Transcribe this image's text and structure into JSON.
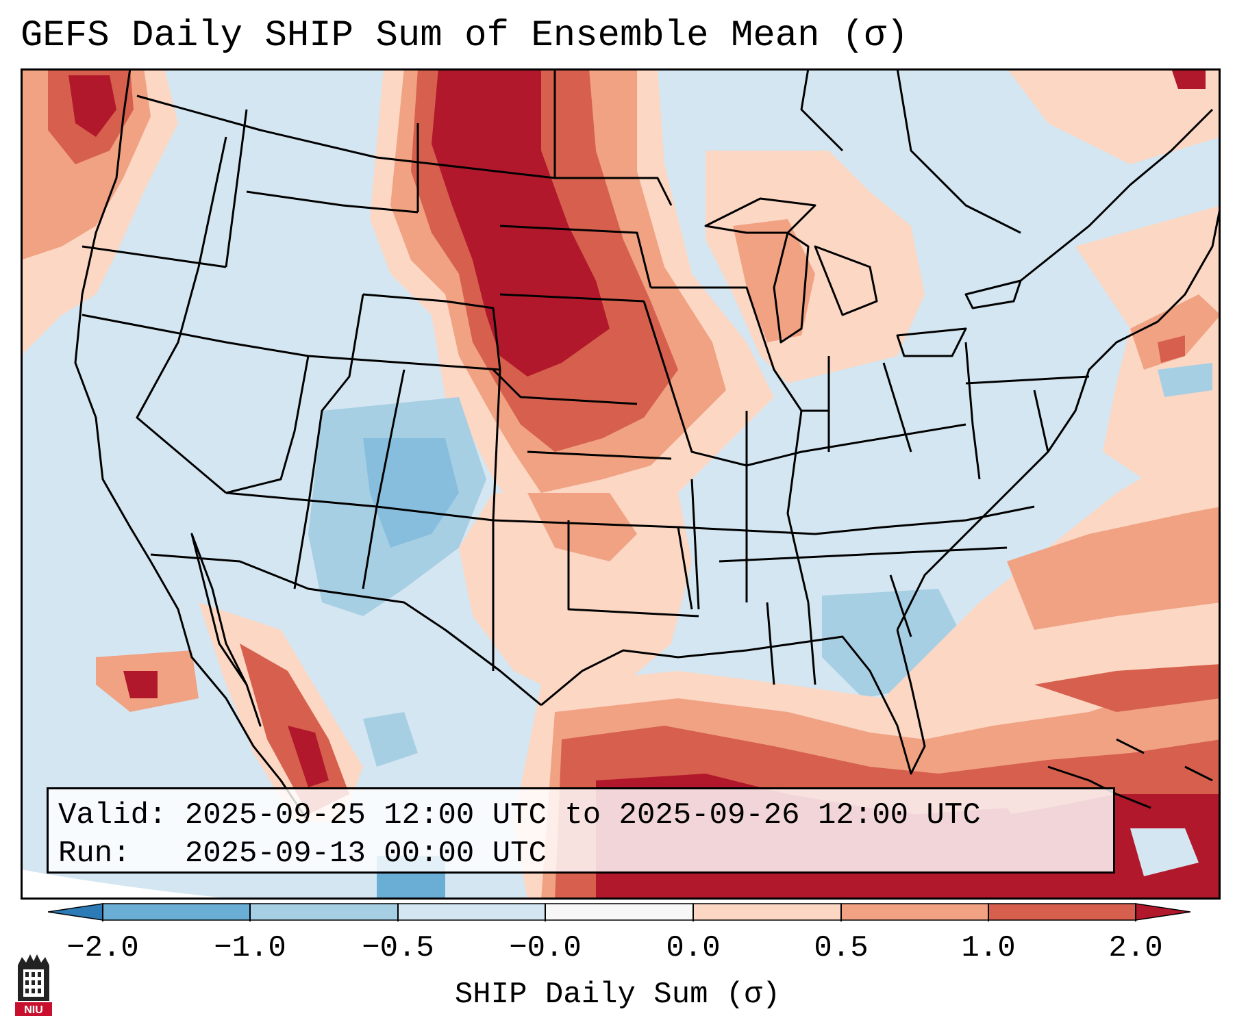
{
  "title": "GEFS Daily SHIP Sum of Ensemble Mean (σ)",
  "info": {
    "valid": "Valid: 2025-09-25 12:00 UTC to 2025-09-26 12:00 UTC",
    "run": "Run:   2025-09-13 00:00 UTC"
  },
  "colorbar": {
    "label": "SHIP Daily Sum (σ)",
    "ticks": [
      "−2.0",
      "−1.0",
      "−0.5",
      "−0.0",
      "0.0",
      "0.5",
      "1.0",
      "2.0"
    ],
    "colors": [
      "#2c7bb6",
      "#6aaed6",
      "#a7cfe4",
      "#d4e6f1",
      "#f7f7f7",
      "#fbd7c4",
      "#f0a283",
      "#d6604d",
      "#b2182b"
    ]
  },
  "logo": {
    "text": "NIU"
  }
}
